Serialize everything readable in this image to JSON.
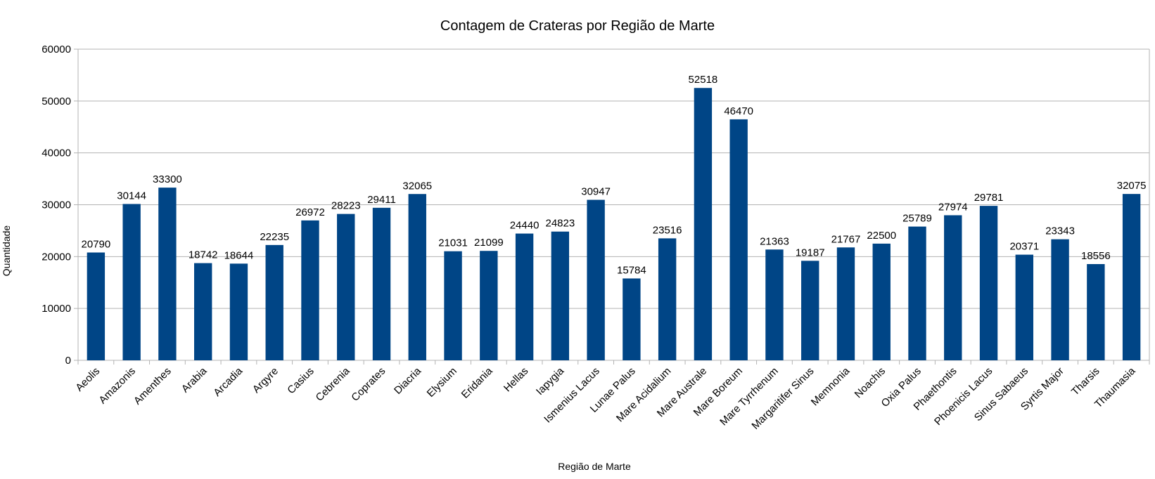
{
  "chart_data": {
    "type": "bar",
    "title": "Contagem de Crateras por Região de Marte",
    "xlabel": "Região de Marte",
    "ylabel": "Quantidade",
    "ylim": [
      0,
      60000
    ],
    "yticks": [
      0,
      10000,
      20000,
      30000,
      40000,
      50000,
      60000
    ],
    "grid": true,
    "bar_color": "#004586",
    "categories": [
      "Aeolis",
      "Amazonis",
      "Amenthes",
      "Arabia",
      "Arcadia",
      "Argyre",
      "Casius",
      "Cebrenia",
      "Coprates",
      "Diacria",
      "Elysium",
      "Eridania",
      "Hellas",
      "Iapygia",
      "Ismenius Lacus",
      "Lunae Palus",
      "Mare Acidalium",
      "Mare Australe",
      "Mare Boreum",
      "Mare Tyrrhenum",
      "Margaritifer Sinus",
      "Memnonia",
      "Noachis",
      "Oxia Palus",
      "Phaethontis",
      "Phoenicis Lacus",
      "Sinus Sabaeus",
      "Syrtis Major",
      "Tharsis",
      "Thaumasia"
    ],
    "values": [
      20790,
      30144,
      33300,
      18742,
      18644,
      22235,
      26972,
      28223,
      29411,
      32065,
      21031,
      21099,
      24440,
      24823,
      30947,
      15784,
      23516,
      52518,
      46470,
      21363,
      19187,
      21767,
      22500,
      25789,
      27974,
      29781,
      20371,
      23343,
      18556,
      32075
    ]
  }
}
